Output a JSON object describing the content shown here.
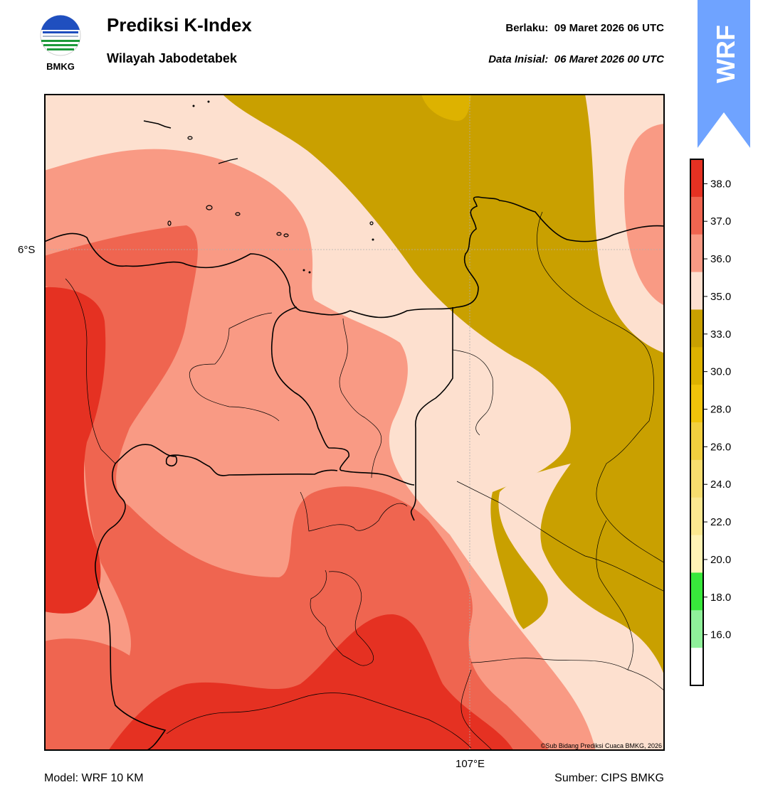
{
  "header": {
    "logo_text": "BMKG",
    "title": "Prediksi K-Index",
    "subtitle": "Wilayah Jabodetabek",
    "valid_label": "Berlaku:",
    "valid_value": "09 Maret 2026 06 UTC",
    "init_label": "Data Inisial:",
    "init_value": "06 Maret 2026 00 UTC"
  },
  "badge": {
    "text": "WRF",
    "color": "#6fa3ff"
  },
  "map": {
    "lat_label": "6°S",
    "lon_label": "107°E",
    "copyright": "©Sub Bidang Prediksi Cuaca BMKG, 2026"
  },
  "colorbar": {
    "ticks": [
      "38.0",
      "37.0",
      "36.0",
      "35.0",
      "33.0",
      "30.0",
      "28.0",
      "26.0",
      "24.0",
      "22.0",
      "20.0",
      "18.0",
      "16.0"
    ],
    "colors_top_to_bottom": [
      "#e53122",
      "#ef6550",
      "#f99a84",
      "#fde0cf",
      "#c9a000",
      "#ddb200",
      "#f0c30a",
      "#f2cf3e",
      "#f7dd6e",
      "#fbe890",
      "#fff3b5",
      "#38e83b",
      "#8ff09a",
      "#ffffff"
    ]
  },
  "footer": {
    "model": "Model: WRF 10 KM",
    "source": "Sumber: CIPS BMKG"
  }
}
